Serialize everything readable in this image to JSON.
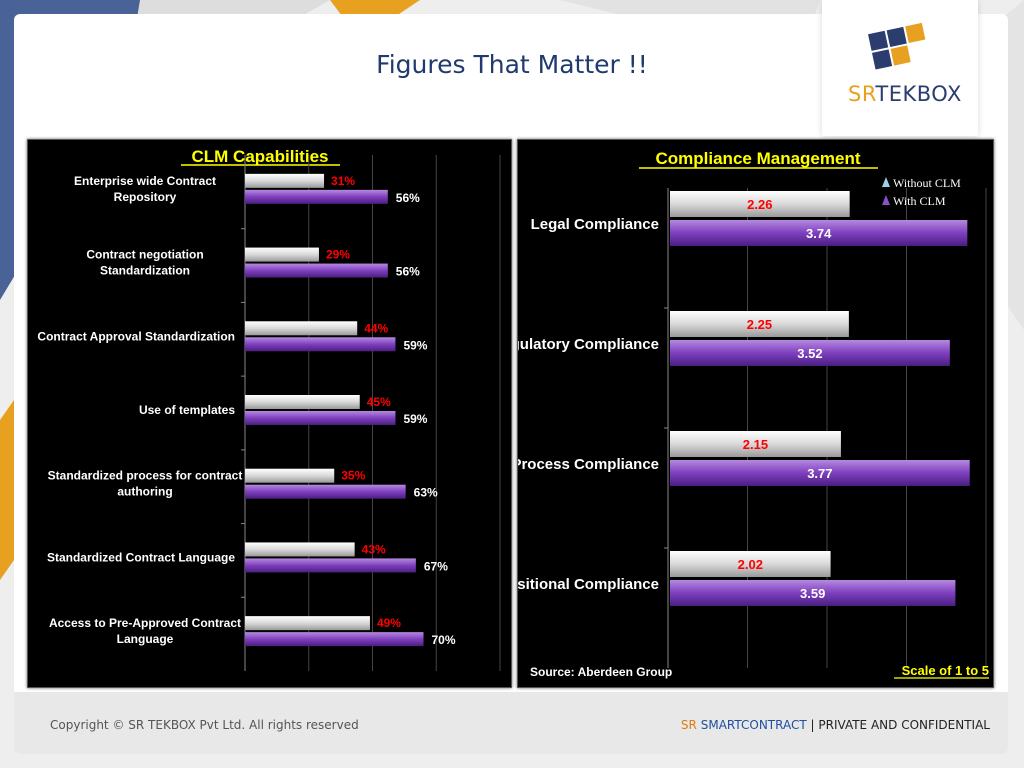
{
  "slide": {
    "title": "Figures That Matter !!",
    "logo": {
      "prefix": "SR",
      "suffix": "TEKBOX"
    },
    "footer": {
      "copyright": "Copyright © SR TEKBOX Pvt Ltd. All rights reserved",
      "brand_sr": "SR",
      "brand_product": "SMARTCONTRACT",
      "separator": "|",
      "confidential": "PRIVATE AND CONFIDENTIAL"
    },
    "colors": {
      "title": "#1f3a6e",
      "chart_title": "#ffff00",
      "without_value": "#ff0000",
      "bar_without": "#d9d9d9",
      "bar_with": "#7f3fbf"
    }
  },
  "chart_data": [
    {
      "type": "bar",
      "orientation": "horizontal",
      "title": "CLM Capabilities",
      "categories": [
        "Enterprise wide Contract Repository",
        "Contract negotiation Standardization",
        "Contract Approval Standardization",
        "Use of templates",
        "Standardized process for contract authoring",
        "Standardized Contract Language",
        "Access to Pre-Approved Contract Language"
      ],
      "series": [
        {
          "values": [
            31,
            29,
            44,
            45,
            35,
            43,
            49
          ],
          "labels": [
            "31%",
            "29%",
            "44%",
            "45%",
            "35%",
            "43%",
            "49%"
          ]
        },
        {
          "values": [
            56,
            56,
            59,
            59,
            63,
            67,
            70
          ],
          "labels": [
            "56%",
            "56%",
            "59%",
            "59%",
            "63%",
            "67%",
            "70%"
          ]
        }
      ],
      "xlim": [
        0,
        100
      ],
      "grid": true
    },
    {
      "type": "bar",
      "orientation": "horizontal",
      "title": "Compliance Management",
      "categories": [
        "Legal Compliance",
        "Regulatory Compliance",
        "Process Compliance",
        "Transitional Compliance"
      ],
      "series": [
        {
          "name": "Without CLM",
          "values": [
            2.26,
            2.25,
            2.15,
            2.02
          ],
          "labels": [
            "2.26",
            "2.25",
            "2.15",
            "2.02"
          ]
        },
        {
          "name": "With CLM",
          "values": [
            3.74,
            3.52,
            3.77,
            3.59
          ],
          "labels": [
            "3.74",
            "3.52",
            "3.77",
            "3.59"
          ]
        }
      ],
      "xlim": [
        0,
        4
      ],
      "legend": "top-right",
      "source": "Source: Aberdeen Group",
      "scale_note": "Scale of 1 to 5",
      "grid": true
    }
  ]
}
